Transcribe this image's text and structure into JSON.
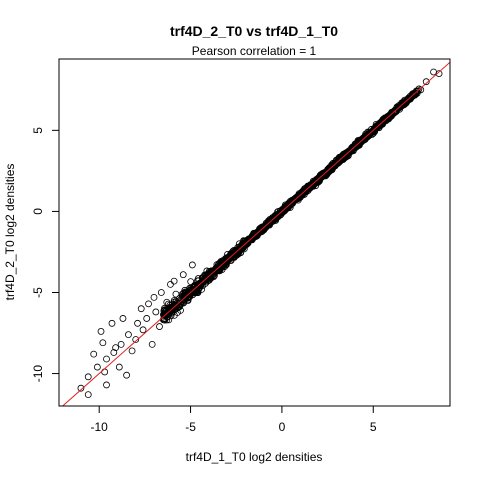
{
  "chart_data": {
    "type": "scatter",
    "title": "trf4D_2_T0 vs trf4D_1_T0",
    "subtitle": "Pearson correlation =  1",
    "xlabel": "trf4D_1_T0 log2 densities",
    "ylabel": "trf4D_2_T0 log2 densities",
    "xlim": [
      -12.2,
      9.2
    ],
    "ylim": [
      -12.0,
      9.4
    ],
    "x_ticks": [
      -10,
      -5,
      0,
      5
    ],
    "y_ticks": [
      -10,
      -5,
      0,
      5
    ],
    "x_tick_labels": [
      "-10",
      "-5",
      "0",
      "5"
    ],
    "y_tick_labels": [
      "-10",
      "-5",
      "0",
      "5"
    ],
    "reference_line": {
      "type": "identity",
      "slope": 1,
      "intercept": 0,
      "color": "#e41a1c"
    },
    "point_style": {
      "shape": "open-circle",
      "color": "#000000"
    },
    "grid": false,
    "sampled_points_outlying": [
      [
        -11.0,
        -10.9
      ],
      [
        -10.6,
        -10.2
      ],
      [
        -10.1,
        -9.6
      ],
      [
        -9.6,
        -9.1
      ],
      [
        -9.2,
        -8.7
      ],
      [
        -8.8,
        -8.2
      ],
      [
        -8.2,
        -8.6
      ],
      [
        -9.8,
        -8.1
      ],
      [
        -9.9,
        -7.4
      ],
      [
        -9.3,
        -6.9
      ],
      [
        -8.7,
        -6.6
      ],
      [
        -7.7,
        -6.0
      ],
      [
        -7.0,
        -5.3
      ],
      [
        -6.6,
        -5.0
      ],
      [
        -6.1,
        -4.5
      ],
      [
        -5.9,
        -4.3
      ],
      [
        -5.4,
        -3.9
      ],
      [
        -4.9,
        -3.3
      ],
      [
        -8.5,
        -10.1
      ],
      [
        -9.6,
        -10.7
      ],
      [
        -10.6,
        -11.3
      ],
      [
        -7.1,
        -8.2
      ],
      [
        -7.6,
        -7.3
      ],
      [
        -8.0,
        -7.9
      ],
      [
        -6.7,
        -7.1
      ],
      [
        -7.3,
        -5.7
      ],
      [
        -6.4,
        -6.4
      ],
      [
        -8.9,
        -9.6
      ],
      [
        -9.1,
        -8.4
      ],
      [
        -8.4,
        -7.6
      ],
      [
        -7.9,
        -6.9
      ],
      [
        -7.4,
        -6.6
      ],
      [
        -6.9,
        -6.2
      ],
      [
        -6.3,
        -5.6
      ],
      [
        -5.8,
        -5.1
      ],
      [
        8.3,
        8.6
      ],
      [
        8.6,
        8.5
      ],
      [
        7.9,
        8.0
      ],
      [
        7.6,
        7.5
      ],
      [
        -10.3,
        -8.8
      ],
      [
        -9.7,
        -9.9
      ]
    ]
  }
}
